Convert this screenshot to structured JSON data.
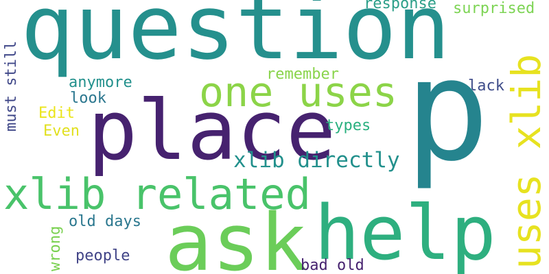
{
  "words": [
    {
      "text": "question",
      "color": "#25908d"
    },
    {
      "text": "p",
      "color": "#25848e"
    },
    {
      "text": "place",
      "color": "#46226f"
    },
    {
      "text": "one uses",
      "color": "#8cd448"
    },
    {
      "text": "uses xlib",
      "color": "#e7e220"
    },
    {
      "text": "help",
      "color": "#2eaf7f"
    },
    {
      "text": "ask",
      "color": "#6bcd59"
    },
    {
      "text": "xlib related",
      "color": "#49c36a"
    },
    {
      "text": "xlib directly",
      "color": "#22908c"
    },
    {
      "text": "response",
      "color": "#2c9f89"
    },
    {
      "text": "surprised",
      "color": "#7dd454"
    },
    {
      "text": "remember",
      "color": "#8ad44c"
    },
    {
      "text": "anymore",
      "color": "#22908c"
    },
    {
      "text": "look",
      "color": "#2a768e"
    },
    {
      "text": "lack",
      "color": "#3f4d8a"
    },
    {
      "text": "types",
      "color": "#2ab07f"
    },
    {
      "text": "Edit",
      "color": "#ebe51a"
    },
    {
      "text": "Even",
      "color": "#e1e020"
    },
    {
      "text": "must still",
      "color": "#3f4788"
    },
    {
      "text": "old days",
      "color": "#2a778e"
    },
    {
      "text": "wrong",
      "color": "#7ad151"
    },
    {
      "text": "people",
      "color": "#414487"
    },
    {
      "text": "bad old",
      "color": "#46226f"
    }
  ]
}
